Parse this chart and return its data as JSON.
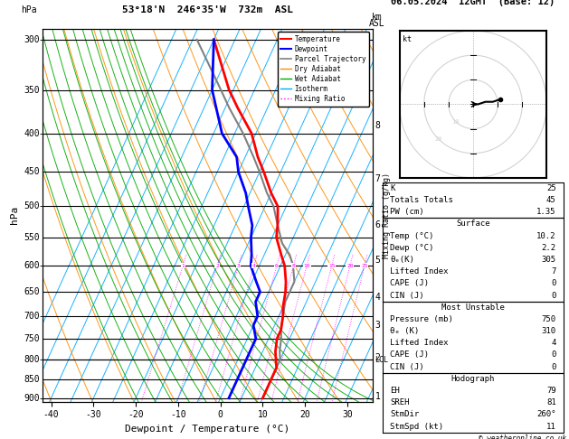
{
  "title_left": "53°18'N  246°35'W  732m  ASL",
  "title_right": "06.05.2024  12GMT  (Base: 12)",
  "xlabel": "Dewpoint / Temperature (°C)",
  "pressure_levels": [
    300,
    350,
    400,
    450,
    500,
    550,
    600,
    650,
    700,
    750,
    800,
    850,
    900
  ],
  "pressure_ticks": [
    300,
    350,
    400,
    450,
    500,
    550,
    600,
    650,
    700,
    750,
    800,
    850,
    900
  ],
  "temp_range": [
    -42,
    36
  ],
  "temp_ticks": [
    -40,
    -30,
    -20,
    -10,
    0,
    10,
    20,
    30
  ],
  "km_ticks": [
    1,
    2,
    3,
    4,
    5,
    6,
    7,
    8
  ],
  "km_pressures": [
    895,
    795,
    720,
    660,
    590,
    530,
    460,
    390
  ],
  "mixing_ratio_labels": [
    1,
    2,
    3,
    4,
    6,
    8,
    10,
    15,
    20,
    25
  ],
  "lcl_pressure": 800,
  "colors": {
    "temperature": "#ff0000",
    "dewpoint": "#0000ff",
    "parcel": "#808080",
    "dry_adiabat": "#ff8c00",
    "wet_adiabat": "#00aa00",
    "isotherm": "#00aaff",
    "mixing_ratio": "#ff00ff",
    "background": "#ffffff",
    "grid": "#000000"
  },
  "temperature_profile": {
    "pressure": [
      300,
      350,
      370,
      400,
      430,
      450,
      480,
      500,
      530,
      550,
      580,
      600,
      630,
      650,
      680,
      700,
      730,
      750,
      780,
      800,
      820,
      850,
      870,
      900
    ],
    "temp": [
      -40,
      -31,
      -27,
      -21,
      -17,
      -14,
      -10,
      -7,
      -5,
      -4,
      -1,
      1,
      3,
      4,
      5,
      6,
      7,
      7,
      8,
      9,
      10,
      10,
      10,
      10
    ]
  },
  "dewpoint_profile": {
    "pressure": [
      300,
      350,
      400,
      430,
      450,
      480,
      500,
      530,
      550,
      580,
      600,
      630,
      650,
      670,
      700,
      720,
      750,
      780,
      800,
      820,
      850,
      870,
      900
    ],
    "temp": [
      -40,
      -35,
      -28,
      -22,
      -20,
      -16,
      -14,
      -11,
      -10,
      -8,
      -7,
      -4,
      -2,
      -2,
      0,
      0,
      2,
      2,
      2,
      2,
      2,
      2,
      2
    ]
  },
  "parcel_profile": {
    "pressure": [
      300,
      340,
      370,
      400,
      430,
      450,
      480,
      500,
      530,
      560,
      580,
      600,
      630,
      650,
      670,
      700,
      730,
      750,
      780,
      800,
      820,
      850,
      870,
      900
    ],
    "temp": [
      -44,
      -35,
      -29,
      -23,
      -18,
      -15,
      -11,
      -8,
      -5,
      -2,
      1,
      3,
      5,
      5,
      5,
      6,
      7,
      8,
      9,
      10,
      10,
      10,
      10,
      10
    ]
  },
  "stats": {
    "K": 25,
    "Totals_Totals": 45,
    "PW_cm": 1.35,
    "Surface_Temp": 10.2,
    "Surface_Dewp": 2.2,
    "Surface_theta_e": 305,
    "Surface_LI": 7,
    "Surface_CAPE": 0,
    "Surface_CIN": 0,
    "MU_Pressure": 750,
    "MU_theta_e": 310,
    "MU_LI": 4,
    "MU_CAPE": 0,
    "MU_CIN": 0,
    "EH": 79,
    "SREH": 81,
    "StmDir": 260,
    "StmSpd": 11
  },
  "font_family": "monospace",
  "skew": 35.0,
  "P_ref": 1000.0,
  "P_min": 290,
  "P_max": 910
}
